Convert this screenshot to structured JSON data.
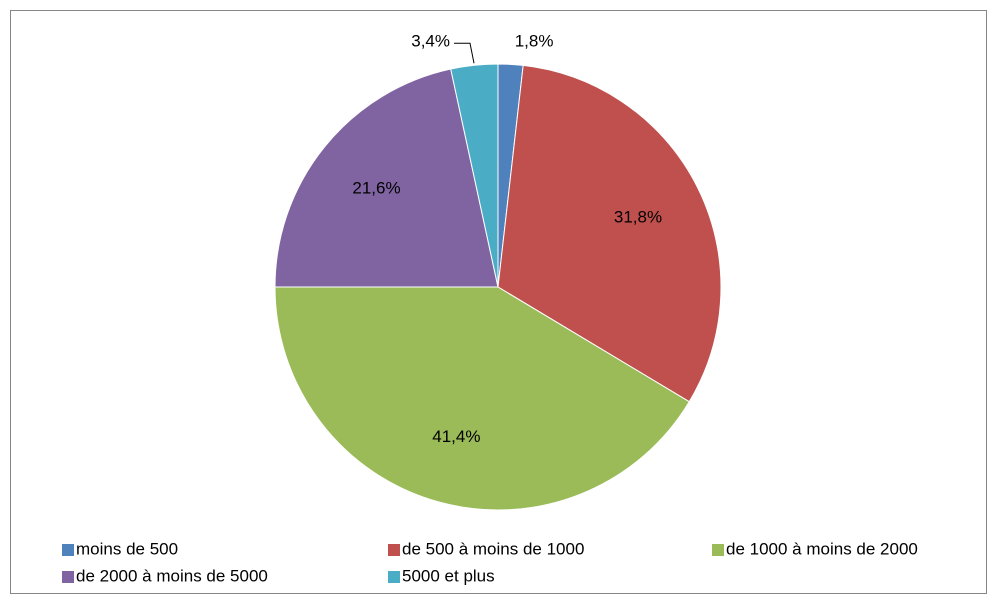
{
  "chart_data": {
    "type": "pie",
    "categories": [
      "moins de 500",
      "de 500 à moins de 1000",
      "de 1000 à moins de 2000",
      "de 2000 à moins de 5000",
      "5000 et plus"
    ],
    "values": [
      1.8,
      31.8,
      41.4,
      21.6,
      3.4
    ],
    "value_labels": [
      "1,8%",
      "31,8%",
      "41,4%",
      "21,6%",
      "3,4%"
    ],
    "colors": [
      "#4f81bd",
      "#c0504d",
      "#9bbb59",
      "#8064a2",
      "#4bacc6"
    ],
    "legend": "bottom"
  }
}
